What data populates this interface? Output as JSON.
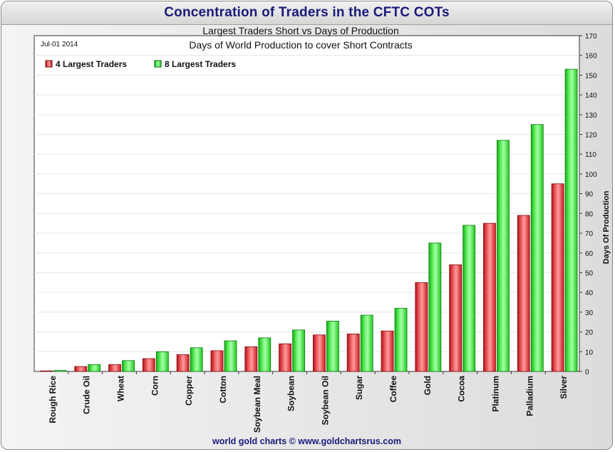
{
  "header": {
    "title": "Concentration of Traders in the CFTC COTs"
  },
  "footer": {
    "credit": "world gold charts © www.goldchartsrus.com"
  },
  "chart_data": {
    "type": "bar",
    "title": "Largest Traders Short vs Days of Production",
    "subtitle": "Days of World Production to cover Short Contracts",
    "date_label": "Jul-01  2014",
    "xlabel": "",
    "ylabel": "Days Of Production",
    "ylim": [
      0,
      170
    ],
    "y_ticks": [
      0,
      10,
      20,
      30,
      40,
      50,
      60,
      70,
      80,
      90,
      100,
      110,
      120,
      130,
      140,
      150,
      160,
      170
    ],
    "y_axis_side": "right",
    "grid": true,
    "legend_position": "top-left",
    "categories": [
      "Rough Rice",
      "Crude Oil",
      "Wheat",
      "Corn",
      "Copper",
      "Cotton",
      "Soybean Meal",
      "Soybean",
      "Soybean Oil",
      "Sugar",
      "Coffee",
      "Gold",
      "Cocoa",
      "Platinum",
      "Palladium",
      "Silver"
    ],
    "series": [
      {
        "name": "4 Largest Traders",
        "color": "#e8262a",
        "values": [
          0.3,
          2.5,
          3.5,
          6.5,
          8.5,
          10.5,
          12.5,
          14,
          18.5,
          19,
          20.5,
          45,
          54,
          75,
          79,
          95
        ]
      },
      {
        "name": "8 Largest Traders",
        "color": "#2ee32e",
        "values": [
          0.5,
          3.5,
          5.5,
          10,
          12,
          15.5,
          17,
          21,
          25.5,
          28.5,
          32,
          65,
          74,
          117,
          125,
          153
        ]
      }
    ]
  }
}
